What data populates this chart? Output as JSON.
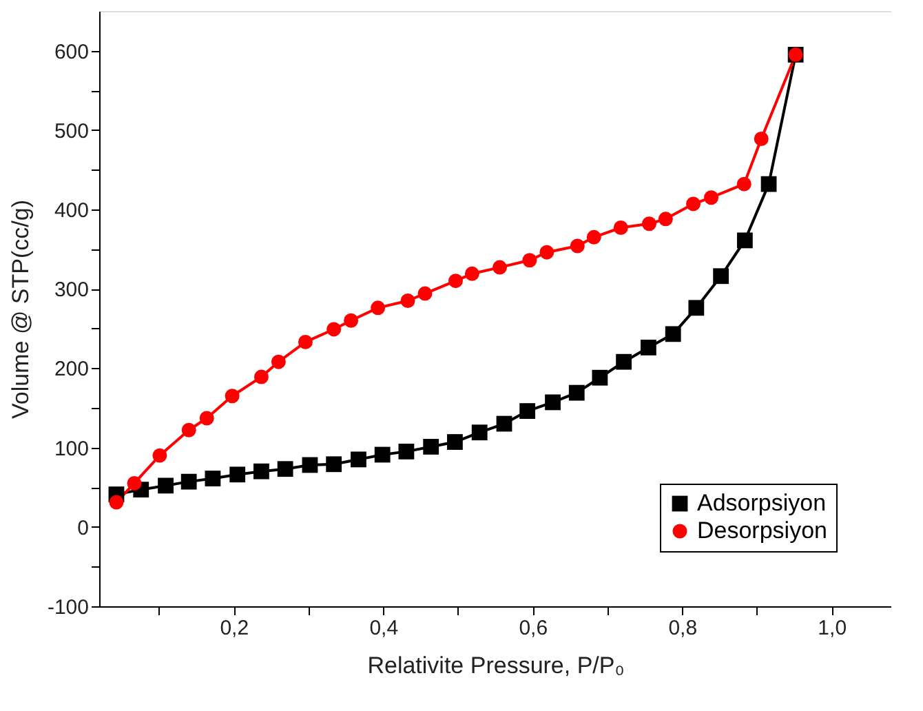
{
  "chart_data": {
    "type": "line",
    "xlabel": "Relativite Pressure, P/P₀",
    "ylabel": "Volume @ STP(cc/g)",
    "marker": "circle",
    "line_style": "solid",
    "grid": false,
    "legend": "bottom right",
    "xlim": [
      0.02,
      1.08
    ],
    "ylim": [
      -100,
      650
    ],
    "xticks": [
      {
        "value": 0.1,
        "label": null
      },
      {
        "value": 0.2,
        "label": "0,2"
      },
      {
        "value": 0.3,
        "label": null
      },
      {
        "value": 0.4,
        "label": "0,4"
      },
      {
        "value": 0.5,
        "label": null
      },
      {
        "value": 0.6,
        "label": "0,6"
      },
      {
        "value": 0.7,
        "label": null
      },
      {
        "value": 0.8,
        "label": "0,8"
      },
      {
        "value": 0.9,
        "label": null
      },
      {
        "value": 1.0,
        "label": "1,0"
      }
    ],
    "yticks": [
      -100,
      {
        "value": -50,
        "label": null
      },
      0,
      {
        "value": 50,
        "label": null
      },
      100,
      {
        "value": 150,
        "label": null
      },
      200,
      {
        "value": 250,
        "label": null
      },
      300,
      {
        "value": 350,
        "label": null
      },
      400,
      {
        "value": 450,
        "label": null
      },
      500,
      {
        "value": 550,
        "label": null
      },
      600
    ],
    "series": [
      {
        "name": "Adsorpsiyon",
        "color": "#000000",
        "marker": "square",
        "x": [
          0.043,
          0.076,
          0.109,
          0.14,
          0.172,
          0.205,
          0.237,
          0.269,
          0.302,
          0.334,
          0.367,
          0.399,
          0.431,
          0.464,
          0.496,
          0.529,
          0.562,
          0.593,
          0.627,
          0.659,
          0.69,
          0.722,
          0.755,
          0.788,
          0.819,
          0.852,
          0.884,
          0.916,
          0.952
        ],
        "values": [
          41,
          47,
          52,
          57,
          61,
          66,
          70,
          73,
          78,
          79,
          85,
          91,
          95,
          101,
          107,
          119,
          130,
          146,
          157,
          169,
          188,
          208,
          226,
          243,
          276,
          316,
          361,
          432,
          595
        ]
      },
      {
        "name": "Desorpsiyon",
        "color": "#ff0000",
        "marker": "circle",
        "x": [
          0.043,
          0.067,
          0.101,
          0.14,
          0.164,
          0.198,
          0.237,
          0.26,
          0.296,
          0.334,
          0.357,
          0.393,
          0.433,
          0.456,
          0.497,
          0.519,
          0.556,
          0.596,
          0.619,
          0.66,
          0.682,
          0.718,
          0.756,
          0.778,
          0.815,
          0.839,
          0.883,
          0.906,
          0.952
        ],
        "values": [
          31,
          55,
          90,
          122,
          137,
          165,
          189,
          208,
          233,
          249,
          260,
          276,
          285,
          294,
          310,
          319,
          327,
          336,
          346,
          354,
          365,
          377,
          382,
          388,
          407,
          415,
          432,
          489,
          595
        ]
      }
    ]
  }
}
